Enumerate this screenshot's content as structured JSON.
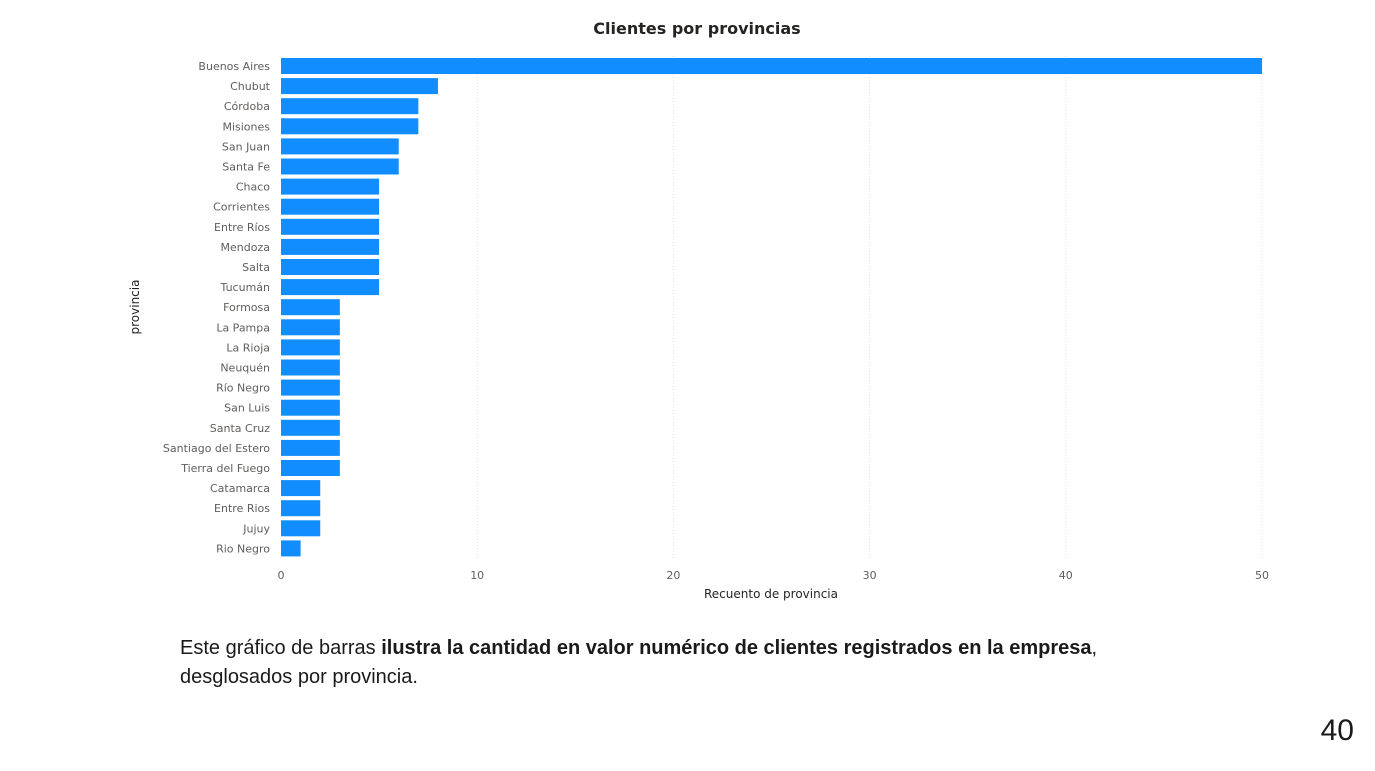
{
  "chart_data": {
    "type": "bar",
    "orientation": "horizontal",
    "title": "Clientes por provincias",
    "xlabel": "Recuento de provincia",
    "ylabel": "provincia",
    "xlim": [
      0,
      50
    ],
    "xticks": [
      "0",
      "10",
      "20",
      "30",
      "40",
      "50"
    ],
    "grid": true,
    "bar_color": "#118DFF",
    "categories": [
      "Buenos Aires",
      "Chubut",
      "Córdoba",
      "Misiones",
      "San Juan",
      "Santa Fe",
      "Chaco",
      "Corrientes",
      "Entre Ríos",
      "Mendoza",
      "Salta",
      "Tucumán",
      "Formosa",
      "La Pampa",
      "La Rioja",
      "Neuquén",
      "Río Negro",
      "San Luis",
      "Santa Cruz",
      "Santiago del Estero",
      "Tierra del Fuego",
      "Catamarca",
      "Entre Rios",
      "Jujuy",
      "Rio Negro"
    ],
    "values": [
      50,
      8,
      7,
      7,
      6,
      6,
      5,
      5,
      5,
      5,
      5,
      5,
      3,
      3,
      3,
      3,
      3,
      3,
      3,
      3,
      3,
      2,
      2,
      2,
      1
    ]
  },
  "caption": {
    "prefix": "Este gráfico de barras ",
    "bold": "ilustra la cantidad en valor numérico de clientes registrados en la empresa",
    "suffix": ",",
    "line2": "desglosados por provincia."
  },
  "page_number": "40"
}
